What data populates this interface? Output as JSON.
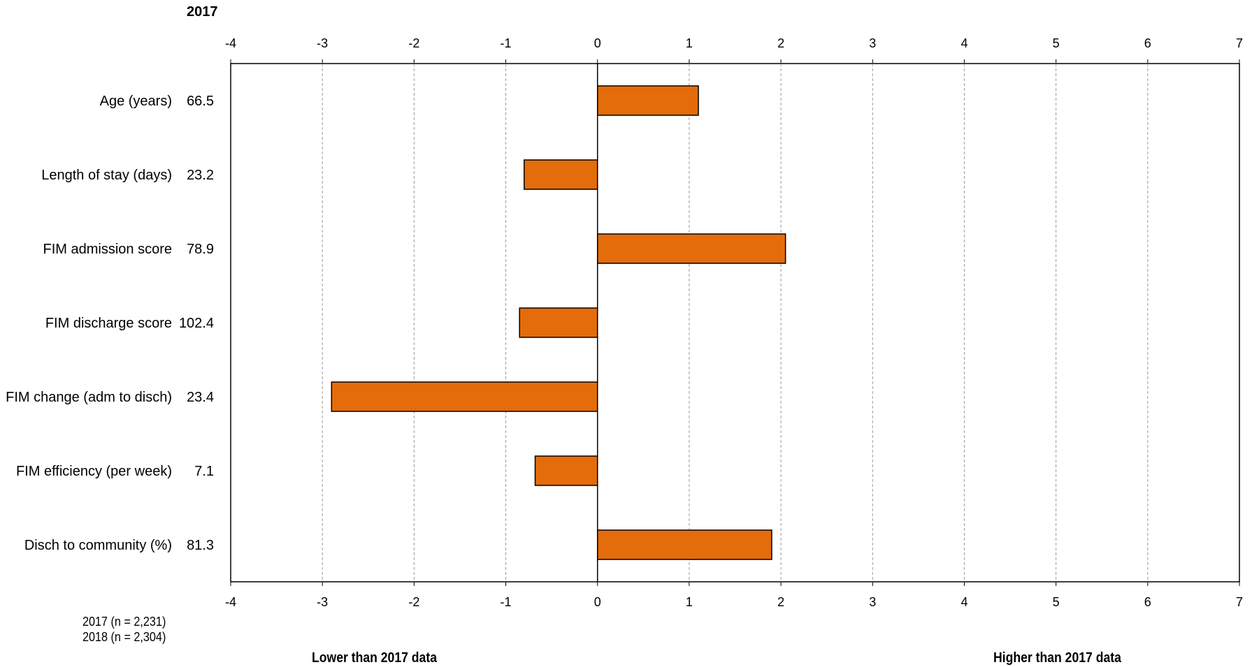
{
  "chart_data": {
    "type": "bar",
    "orientation": "horizontal",
    "title": "2017",
    "categories": [
      "Age (years)",
      "Length of stay (days)",
      "FIM admission score",
      "FIM discharge score",
      "FIM change (adm to disch)",
      "FIM efficiency (per week)",
      "Disch to community (%)"
    ],
    "category_values": [
      "66.5",
      "23.2",
      "78.9",
      "102.4",
      "23.4",
      "7.1",
      "81.3"
    ],
    "values": [
      1.1,
      -0.8,
      2.05,
      -0.85,
      -2.9,
      -0.68,
      1.9
    ],
    "xlim": [
      -4,
      7
    ],
    "xticks": [
      "-4",
      "-3",
      "-2",
      "-1",
      "0",
      "1",
      "2",
      "3",
      "4",
      "5",
      "6",
      "7"
    ],
    "grid": "vertical dashed",
    "bar_color": "#E46C0A",
    "footnotes": [
      "2017  (n = 2,231)",
      "2018  (n = 2,304)"
    ],
    "lower_label": "Lower than 2017  data",
    "higher_label": "Higher than 2017  data"
  }
}
